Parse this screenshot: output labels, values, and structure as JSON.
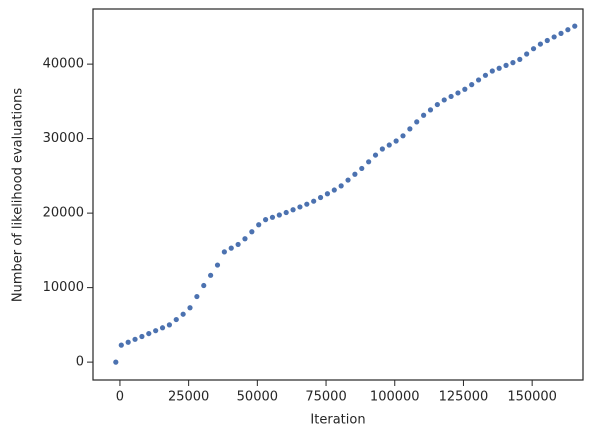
{
  "chart_data": {
    "type": "scatter",
    "xlabel": "Iteration",
    "ylabel": "Number of likelihood evaluations",
    "color": "#4c72b0",
    "grid": false,
    "xlim": [
      -9800,
      168500
    ],
    "ylim": [
      -2400,
      47400
    ],
    "xticks": [
      0,
      25000,
      50000,
      75000,
      100000,
      125000,
      150000
    ],
    "yticks": [
      0,
      10000,
      20000,
      30000,
      40000
    ],
    "x": [
      -1500,
      500,
      3000,
      5500,
      8000,
      10500,
      13000,
      15500,
      18000,
      20500,
      23000,
      25500,
      28000,
      30500,
      33000,
      35500,
      38000,
      40500,
      43000,
      45500,
      48000,
      50500,
      53000,
      55500,
      58000,
      60500,
      63000,
      65500,
      68000,
      70500,
      73000,
      75500,
      78000,
      80500,
      83000,
      85500,
      88000,
      90500,
      93000,
      95500,
      98000,
      100500,
      103000,
      105500,
      108000,
      110500,
      113000,
      115500,
      118000,
      120500,
      123000,
      125500,
      128000,
      130500,
      133000,
      135500,
      138000,
      140500,
      143000,
      145500,
      148000,
      150500,
      153000,
      155500,
      158000,
      160500,
      163000,
      165500
    ],
    "y": [
      0,
      2280,
      2670,
      3060,
      3440,
      3830,
      4220,
      4610,
      5000,
      5710,
      6430,
      7300,
      8800,
      10280,
      11650,
      13030,
      14800,
      15300,
      15800,
      16560,
      17500,
      18440,
      19130,
      19440,
      19750,
      20080,
      20450,
      20830,
      21200,
      21600,
      22100,
      22600,
      23100,
      23660,
      24440,
      25220,
      26000,
      26890,
      27790,
      28610,
      29140,
      29680,
      30380,
      31310,
      32250,
      33140,
      33860,
      34570,
      35190,
      35660,
      36130,
      36630,
      37250,
      37880,
      38500,
      39080,
      39450,
      39830,
      40200,
      40640,
      41360,
      42070,
      42690,
      43170,
      43650,
      44130,
      44620,
      45100
    ]
  }
}
